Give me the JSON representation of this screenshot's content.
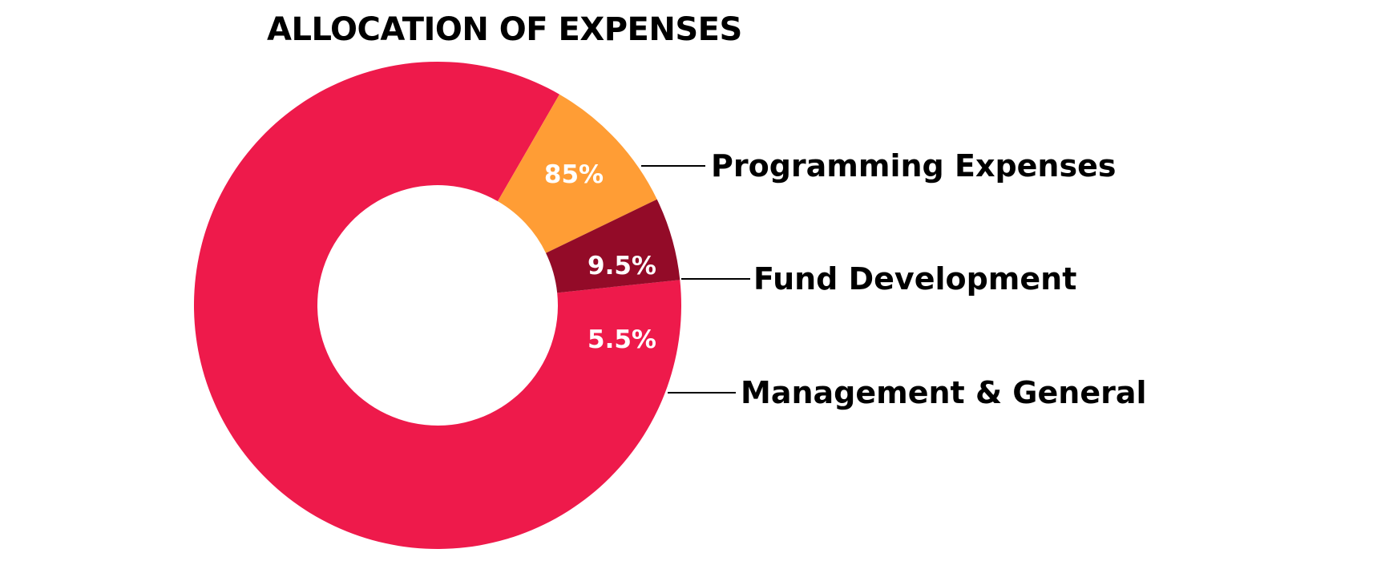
{
  "chart_data": {
    "type": "pie",
    "title": "ALLOCATION OF EXPENSES",
    "donut": true,
    "categories": [
      "Programming Expenses",
      "Fund Development",
      "Management & General"
    ],
    "values": [
      85,
      9.5,
      5.5
    ],
    "value_labels": [
      "85%",
      "9.5%",
      "5.5%"
    ],
    "colors": [
      "#EE1A4B",
      "#FF9D35",
      "#930B28"
    ],
    "legend_position": "right"
  }
}
